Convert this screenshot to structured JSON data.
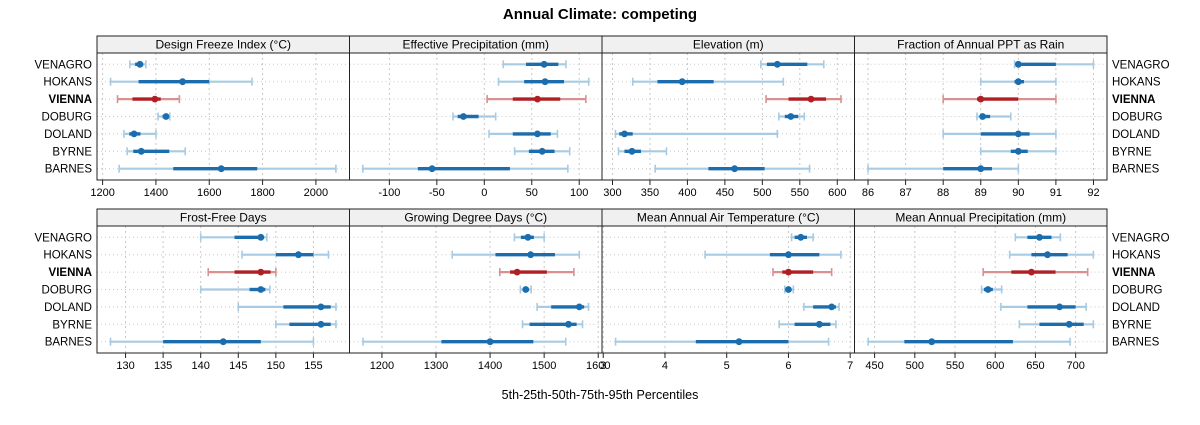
{
  "title": "Annual Climate: competing",
  "footer": "5th-25th-50th-75th-95th Percentiles",
  "stations": [
    "VENAGRO",
    "HOKANS",
    "VIENNA",
    "DOBURG",
    "DOLAND",
    "BYRNE",
    "BARNES"
  ],
  "highlight_station": "VIENNA",
  "percentile_labels": [
    "5th",
    "25th",
    "50th",
    "75th",
    "95th"
  ],
  "colors": {
    "dark_blue": "#1c6dad",
    "light_blue": "#a6cbe3",
    "dark_red": "#b01f24",
    "light_red": "#d99090",
    "grid": "#c8c8c8",
    "header_bg": "#f0f0f0",
    "border": "#222222",
    "text": "#000000"
  },
  "chart_data": [
    {
      "type": "percentile-dotplot",
      "title": "Design Freeze Index (°C)",
      "grid_row": 0,
      "grid_col": 0,
      "xlim": [
        1179,
        2126
      ],
      "ticks": [
        1200,
        1400,
        1600,
        1800,
        2000
      ],
      "values": [
        [
          1302,
          1322,
          1340,
          1352,
          1362
        ],
        [
          1230,
          1335,
          1500,
          1600,
          1760
        ],
        [
          1256,
          1312,
          1396,
          1418,
          1488
        ],
        [
          1408,
          1425,
          1438,
          1446,
          1452
        ],
        [
          1280,
          1300,
          1318,
          1342,
          1400
        ],
        [
          1292,
          1315,
          1345,
          1450,
          1510
        ],
        [
          1262,
          1465,
          1645,
          1780,
          2075
        ]
      ]
    },
    {
      "type": "percentile-dotplot",
      "title": "Effective Precipitation (mm)",
      "grid_row": 0,
      "grid_col": 1,
      "xlim": [
        -142,
        124
      ],
      "ticks": [
        -100,
        -50,
        0,
        50,
        100
      ],
      "values": [
        [
          20,
          44,
          63,
          78,
          86
        ],
        [
          15,
          42,
          64,
          84,
          110
        ],
        [
          3,
          30,
          56,
          80,
          107
        ],
        [
          -33,
          -28,
          -22,
          -6,
          12
        ],
        [
          5,
          30,
          56,
          70,
          77
        ],
        [
          32,
          47,
          61,
          74,
          90
        ],
        [
          -128,
          -70,
          -55,
          27,
          88
        ]
      ]
    },
    {
      "type": "percentile-dotplot",
      "title": "Elevation (m)",
      "grid_row": 0,
      "grid_col": 2,
      "xlim": [
        286,
        623
      ],
      "ticks": [
        300,
        350,
        400,
        450,
        500,
        550,
        600
      ],
      "values": [
        [
          498,
          506,
          520,
          560,
          582
        ],
        [
          327,
          360,
          393,
          435,
          528
        ],
        [
          505,
          535,
          565,
          585,
          605
        ],
        [
          522,
          530,
          538,
          548,
          556
        ],
        [
          304,
          309,
          316,
          327,
          520
        ],
        [
          308,
          316,
          326,
          338,
          372
        ],
        [
          357,
          428,
          463,
          503,
          563
        ]
      ]
    },
    {
      "type": "percentile-dotplot",
      "title": "Fraction of Annual PPT as Rain",
      "grid_row": 0,
      "grid_col": 3,
      "xlim": [
        85.64,
        92.36
      ],
      "ticks": [
        86,
        87,
        88,
        89,
        90,
        91,
        92
      ],
      "values": [
        [
          89.9,
          90,
          90,
          91,
          92
        ],
        [
          89,
          89.9,
          90,
          90.15,
          91
        ],
        [
          88,
          88.9,
          89,
          90,
          91
        ],
        [
          88.9,
          89,
          89.05,
          89.25,
          89.8
        ],
        [
          88,
          89,
          90,
          90.3,
          91
        ],
        [
          89,
          89.8,
          90,
          90.25,
          91
        ],
        [
          86,
          88,
          89,
          89.3,
          90
        ]
      ]
    },
    {
      "type": "percentile-dotplot",
      "title": "Frost-Free Days",
      "grid_row": 1,
      "grid_col": 0,
      "xlim": [
        126.2,
        159.8
      ],
      "ticks": [
        130,
        135,
        140,
        145,
        150,
        155
      ],
      "values": [
        [
          140,
          144.5,
          148,
          148.4,
          148.8
        ],
        [
          145.5,
          150,
          153,
          155,
          157
        ],
        [
          141,
          144.5,
          148,
          149.3,
          150
        ],
        [
          140,
          146.5,
          148,
          148.6,
          149.2
        ],
        [
          145,
          151,
          156,
          157.3,
          158
        ],
        [
          150,
          151.8,
          156,
          157.3,
          158
        ],
        [
          128,
          135,
          143,
          148,
          155
        ]
      ]
    },
    {
      "type": "percentile-dotplot",
      "title": "Growing Degree Days (°C)",
      "grid_row": 1,
      "grid_col": 1,
      "xlim": [
        1140,
        1607
      ],
      "ticks": [
        1200,
        1300,
        1400,
        1500,
        1600
      ],
      "values": [
        [
          1445,
          1457,
          1470,
          1481,
          1500
        ],
        [
          1330,
          1410,
          1475,
          1520,
          1565
        ],
        [
          1418,
          1437,
          1450,
          1505,
          1555
        ],
        [
          1456,
          1461,
          1466,
          1471,
          1476
        ],
        [
          1487,
          1513,
          1565,
          1574,
          1582
        ],
        [
          1460,
          1473,
          1545,
          1560,
          1571
        ],
        [
          1165,
          1310,
          1400,
          1480,
          1540
        ]
      ]
    },
    {
      "type": "percentile-dotplot",
      "title": "Mean Annual Air Temperature (°C)",
      "grid_row": 1,
      "grid_col": 2,
      "xlim": [
        2.98,
        7.07
      ],
      "ticks": [
        3,
        4,
        5,
        6,
        7
      ],
      "values": [
        [
          6.05,
          6.1,
          6.2,
          6.3,
          6.4
        ],
        [
          4.65,
          5.7,
          6.0,
          6.5,
          6.85
        ],
        [
          5.75,
          5.9,
          6.0,
          6.4,
          6.7
        ],
        [
          5.94,
          5.97,
          6.0,
          6.04,
          6.08
        ],
        [
          6.25,
          6.4,
          6.7,
          6.77,
          6.82
        ],
        [
          5.85,
          6.1,
          6.5,
          6.68,
          6.77
        ],
        [
          3.2,
          4.5,
          5.2,
          6.0,
          6.65
        ]
      ]
    },
    {
      "type": "percentile-dotplot",
      "title": "Mean Annual Precipitation (mm)",
      "grid_row": 1,
      "grid_col": 3,
      "xlim": [
        425,
        739
      ],
      "ticks": [
        450,
        500,
        550,
        600,
        650,
        700
      ],
      "values": [
        [
          625,
          640,
          655,
          670,
          681
        ],
        [
          618,
          645,
          665,
          690,
          722
        ],
        [
          585,
          620,
          645,
          675,
          715
        ],
        [
          583,
          586,
          591,
          597,
          608
        ],
        [
          607,
          640,
          680,
          700,
          713
        ],
        [
          630,
          655,
          692,
          710,
          722
        ],
        [
          442,
          487,
          521,
          622,
          693
        ]
      ]
    }
  ]
}
